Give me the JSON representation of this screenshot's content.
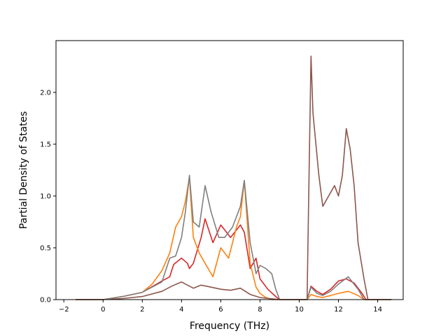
{
  "chart_data": {
    "type": "line",
    "title": "",
    "xlabel": "Frequency (THz)",
    "ylabel": "Partial Density of States",
    "xlim": [
      -2.4,
      15.3
    ],
    "ylim": [
      0.0,
      2.5
    ],
    "xticks": [
      "−2",
      "0",
      "2",
      "4",
      "6",
      "8",
      "10",
      "12",
      "14"
    ],
    "xtick_values": [
      -2,
      0,
      2,
      4,
      6,
      8,
      10,
      12,
      14
    ],
    "yticks": [
      "0.0",
      "0.5",
      "1.0",
      "1.5",
      "2.0"
    ],
    "ytick_values": [
      0.0,
      0.5,
      1.0,
      1.5,
      2.0
    ],
    "grid": false,
    "legend": "none",
    "series": [
      {
        "color": "#d62728",
        "x": [
          -1.4,
          0.0,
          1.0,
          2.0,
          3.0,
          3.4,
          3.6,
          4.0,
          4.3,
          4.4,
          4.6,
          5.0,
          5.2,
          5.6,
          6.0,
          6.5,
          7.0,
          7.2,
          7.5,
          7.8,
          8.0,
          8.4,
          8.8,
          9.0,
          10.4,
          10.6,
          10.9,
          11.2,
          11.6,
          12.0,
          12.4,
          12.8,
          13.2,
          13.4,
          14.7
        ],
        "y": [
          0.0,
          0.0,
          0.03,
          0.07,
          0.18,
          0.22,
          0.34,
          0.4,
          0.35,
          0.3,
          0.35,
          0.6,
          0.78,
          0.55,
          0.72,
          0.6,
          0.72,
          0.65,
          0.3,
          0.4,
          0.2,
          0.1,
          0.03,
          0.0,
          0.0,
          0.13,
          0.08,
          0.05,
          0.1,
          0.18,
          0.2,
          0.16,
          0.06,
          0.0,
          0.0
        ]
      },
      {
        "color": "#ff7f0e",
        "x": [
          -1.4,
          0.0,
          1.0,
          2.0,
          2.5,
          3.0,
          3.4,
          3.7,
          4.0,
          4.2,
          4.4,
          4.6,
          4.9,
          5.2,
          5.6,
          6.0,
          6.4,
          6.8,
          7.0,
          7.2,
          7.5,
          7.8,
          8.0,
          8.3,
          8.6,
          9.0,
          10.4,
          10.6,
          10.9,
          11.2,
          11.6,
          12.0,
          12.5,
          13.0,
          13.3,
          14.7
        ],
        "y": [
          0.0,
          0.0,
          0.03,
          0.07,
          0.15,
          0.28,
          0.45,
          0.7,
          0.8,
          0.95,
          1.18,
          0.6,
          0.45,
          0.35,
          0.22,
          0.5,
          0.4,
          0.7,
          0.8,
          1.15,
          0.35,
          0.12,
          0.06,
          0.02,
          0.0,
          0.0,
          0.0,
          0.05,
          0.03,
          0.02,
          0.04,
          0.06,
          0.08,
          0.04,
          0.0,
          0.0
        ]
      },
      {
        "color": "#8c564b",
        "x": [
          -1.4,
          0.0,
          1.0,
          2.0,
          3.0,
          3.5,
          4.0,
          4.3,
          4.6,
          5.0,
          5.5,
          6.0,
          6.5,
          7.0,
          7.5,
          8.0,
          8.5,
          9.0,
          10.4,
          10.5,
          10.6,
          10.7,
          10.8,
          10.9,
          11.0,
          11.2,
          11.5,
          11.8,
          12.0,
          12.2,
          12.4,
          12.6,
          12.8,
          13.0,
          13.3,
          13.5,
          14.7
        ],
        "y": [
          0.0,
          0.0,
          0.01,
          0.03,
          0.08,
          0.13,
          0.17,
          0.14,
          0.11,
          0.14,
          0.12,
          0.1,
          0.09,
          0.11,
          0.05,
          0.02,
          0.01,
          0.0,
          0.0,
          1.2,
          2.35,
          1.8,
          1.6,
          1.4,
          1.2,
          0.9,
          1.0,
          1.1,
          1.0,
          1.2,
          1.65,
          1.45,
          1.1,
          0.55,
          0.2,
          0.0,
          0.0
        ]
      },
      {
        "color": "#7f7f7f",
        "x": [
          -1.4,
          0.0,
          1.0,
          2.0,
          3.0,
          3.4,
          3.7,
          4.0,
          4.2,
          4.4,
          4.6,
          4.9,
          5.2,
          5.5,
          5.9,
          6.2,
          6.6,
          7.0,
          7.2,
          7.5,
          7.8,
          8.0,
          8.3,
          8.6,
          8.8,
          9.0,
          10.4,
          10.6,
          10.9,
          11.2,
          11.6,
          12.0,
          12.5,
          13.0,
          13.3,
          14.7
        ],
        "y": [
          0.0,
          0.0,
          0.03,
          0.07,
          0.17,
          0.4,
          0.42,
          0.6,
          0.85,
          1.2,
          0.75,
          0.7,
          1.1,
          0.85,
          0.6,
          0.6,
          0.7,
          0.9,
          1.15,
          0.55,
          0.25,
          0.33,
          0.3,
          0.25,
          0.1,
          0.0,
          0.0,
          0.12,
          0.06,
          0.04,
          0.08,
          0.15,
          0.22,
          0.1,
          0.0,
          0.0
        ]
      }
    ]
  }
}
